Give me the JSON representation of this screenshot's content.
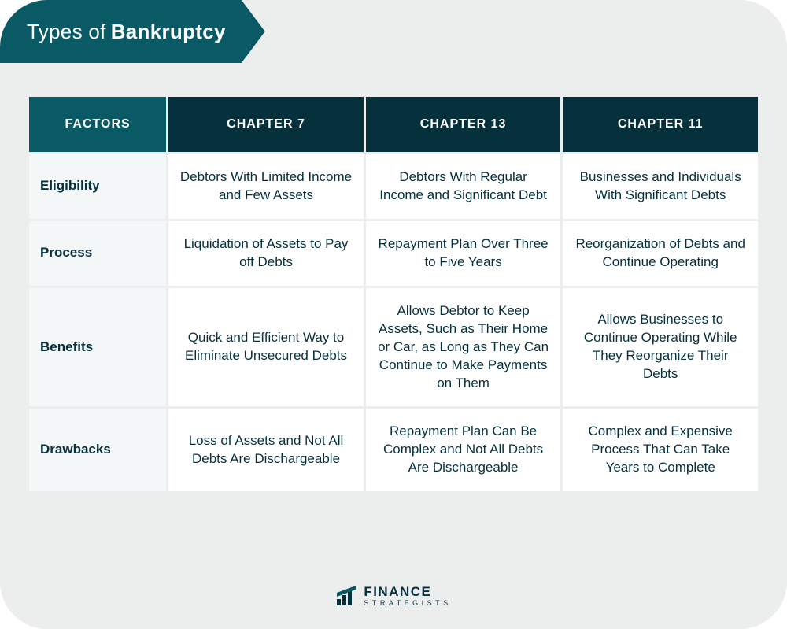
{
  "colors": {
    "page_bg": "#eceded",
    "banner_bg": "#0a5a66",
    "header_factors_bg": "#0a5a66",
    "header_chapter_bg": "#06303c",
    "factor_cell_bg": "#f3f7f8",
    "data_cell_bg": "#ffffff",
    "text_dark": "#06303c",
    "text_white": "#ffffff",
    "logo_text": "#06303c",
    "logo_accent": "#0a5a66"
  },
  "title": {
    "prefix": "Types of",
    "bold": "Bankruptcy"
  },
  "table": {
    "type": "table",
    "column_widths_pct": [
      19,
      27,
      27,
      27
    ],
    "header_font_size": 16,
    "cell_font_size": 17,
    "columns": [
      "FACTORS",
      "CHAPTER 7",
      "CHAPTER 13",
      "CHAPTER 11"
    ],
    "rows": [
      {
        "factor": "Eligibility",
        "cells": [
          "Debtors With Limited Income and Few Assets",
          "Debtors With Regular Income and Significant Debt",
          "Businesses and Individuals With Significant Debts"
        ]
      },
      {
        "factor": "Process",
        "cells": [
          "Liquidation of Assets to Pay off Debts",
          "Repayment Plan Over Three to Five Years",
          "Reorganization of Debts and Continue Operating"
        ]
      },
      {
        "factor": "Benefits",
        "cells": [
          "Quick and Efficient Way to Eliminate Unsecured Debts",
          "Allows Debtor to Keep Assets, Such as Their Home or Car, as Long as They Can Continue to Make Payments on Them",
          "Allows Businesses to Continue Operating While They Reorganize Their Debts"
        ]
      },
      {
        "factor": "Drawbacks",
        "cells": [
          "Loss of Assets and Not All Debts Are Dischargeable",
          "Repayment Plan Can Be Complex and Not All Debts Are Dischargeable",
          "Complex and Expensive Process That Can Take Years to Complete"
        ]
      }
    ]
  },
  "logo": {
    "line1": "FINANCE",
    "line2": "STRATEGISTS"
  }
}
